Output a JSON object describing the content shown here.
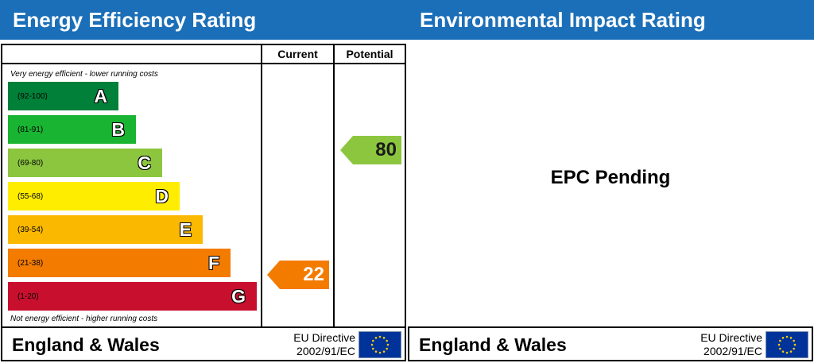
{
  "energy": {
    "title": "Energy Efficiency Rating",
    "columns": {
      "current": "Current",
      "potential": "Potential"
    },
    "top_caption": "Very energy efficient - lower running costs",
    "bottom_caption": "Not energy efficient - higher running costs",
    "bands": [
      {
        "letter": "A",
        "range": "(92-100)",
        "color": "#008038"
      },
      {
        "letter": "B",
        "range": "(81-91)",
        "color": "#19b432"
      },
      {
        "letter": "C",
        "range": "(69-80)",
        "color": "#8cc63f"
      },
      {
        "letter": "D",
        "range": "(55-68)",
        "color": "#ffed00"
      },
      {
        "letter": "E",
        "range": "(39-54)",
        "color": "#fbb800"
      },
      {
        "letter": "F",
        "range": "(21-38)",
        "color": "#f37b00"
      },
      {
        "letter": "G",
        "range": "(1-20)",
        "color": "#c8102e"
      }
    ],
    "current_rating": {
      "value": "22",
      "band": "F",
      "color": "#f37b00"
    },
    "potential_rating": {
      "value": "80",
      "band": "C",
      "color": "#8cc63f"
    }
  },
  "environmental": {
    "title": "Environmental Impact Rating",
    "status": "EPC Pending"
  },
  "footer": {
    "country": "England & Wales",
    "directive_line1": "EU Directive",
    "directive_line2": "2002/91/EC",
    "flag_icon": "eu-flag-icon"
  }
}
